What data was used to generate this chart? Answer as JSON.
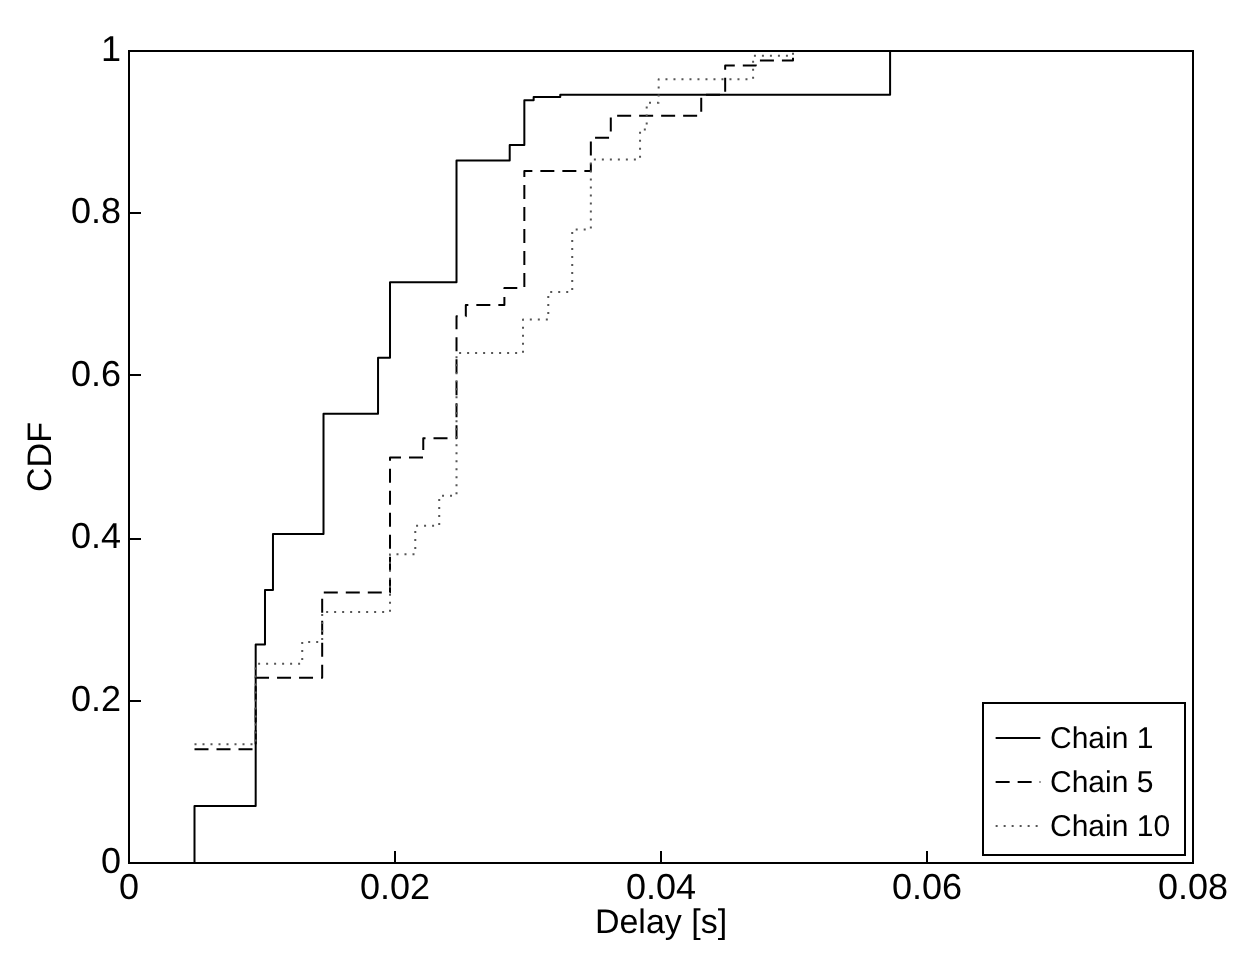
{
  "chart_data": {
    "type": "step",
    "xlabel": "Delay [s]",
    "ylabel": "CDF",
    "xlim": [
      0,
      0.08
    ],
    "xticks": [
      0,
      0.02,
      0.04,
      0.06,
      0.08
    ],
    "ylim": [
      0,
      1
    ],
    "yticks": [
      0,
      0.2,
      0.4,
      0.6,
      0.8,
      1
    ],
    "grid": false,
    "legend": "bottom right",
    "marker": "none",
    "series": [
      {
        "name": "Chain 1",
        "color": "#000000",
        "line_style": "solid",
        "x": [
          0.005,
          0.005,
          0.0096,
          0.0103,
          0.0109,
          0.0147,
          0.0188,
          0.0197,
          0.0247,
          0.0287,
          0.0298,
          0.0305,
          0.0325,
          0.0573,
          0.0573
        ],
        "values": [
          0,
          0.069,
          0.268,
          0.335,
          0.404,
          0.552,
          0.621,
          0.714,
          0.864,
          0.883,
          0.938,
          0.942,
          0.945,
          0.945,
          1
        ]
      },
      {
        "name": "Chain 5",
        "color": "#000000",
        "line_style": "dashed",
        "x": [
          0.005,
          0.0096,
          0.0146,
          0.0197,
          0.0222,
          0.0247,
          0.0254,
          0.0283,
          0.0298,
          0.0348,
          0.0363,
          0.0431,
          0.0449,
          0.0472,
          0.05
        ],
        "values": [
          0.139,
          0.227,
          0.332,
          0.498,
          0.522,
          0.672,
          0.686,
          0.707,
          0.851,
          0.892,
          0.919,
          0.945,
          0.981,
          0.987,
          1
        ]
      },
      {
        "name": "Chain 10",
        "color": "#555555",
        "line_style": "dotted",
        "x": [
          0.005,
          0.0096,
          0.0131,
          0.0146,
          0.0197,
          0.0216,
          0.0234,
          0.0247,
          0.0297,
          0.0316,
          0.0334,
          0.0348,
          0.0385,
          0.039,
          0.0399,
          0.047,
          0.05
        ],
        "values": [
          0.145,
          0.244,
          0.271,
          0.308,
          0.379,
          0.414,
          0.451,
          0.627,
          0.668,
          0.702,
          0.779,
          0.865,
          0.902,
          0.935,
          0.964,
          0.993,
          1
        ]
      }
    ]
  }
}
